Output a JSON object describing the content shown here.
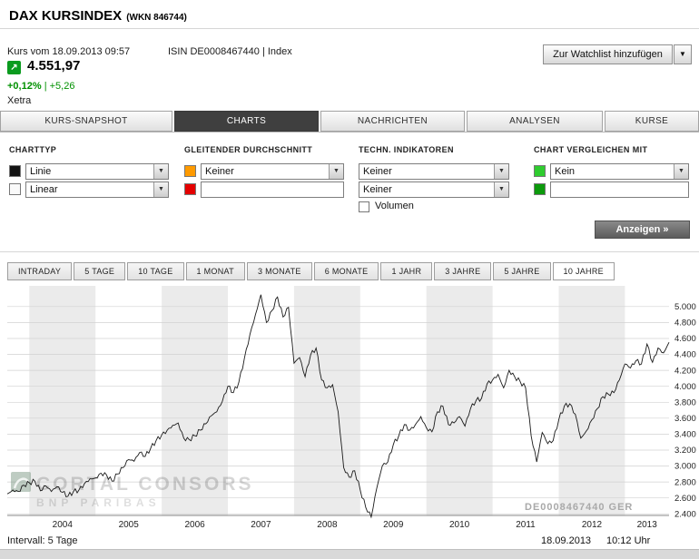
{
  "header": {
    "title": "DAX KURSINDEX",
    "wkn": "(WKN 846744)",
    "quote_timestamp": "Kurs vom 18.09.2013 09:57",
    "isin": "ISIN DE0008467440 | Index",
    "price": "4.551,97",
    "change_percent": "+0,12%",
    "change_absolute": "| +5,26",
    "exchange": "Xetra",
    "watchlist_button": "Zur Watchlist hinzufügen",
    "trend_icon": "up-right-arrow",
    "trend_arrow_glyph": "↗",
    "positive_color": "#009100",
    "trend_icon_color": "#0b9b1f"
  },
  "tabs": [
    {
      "label": "KURS-SNAPSHOT",
      "active": false
    },
    {
      "label": "CHARTS",
      "active": true
    },
    {
      "label": "NACHRICHTEN",
      "active": false
    },
    {
      "label": "ANALYSEN",
      "active": false
    },
    {
      "label": "KURSE",
      "active": false
    }
  ],
  "options_panel": {
    "columns": [
      {
        "header": "CHARTTYP",
        "rows": [
          {
            "swatch": "#141414",
            "value": "Linie"
          },
          {
            "swatch": "#fafafa",
            "value": "Linear"
          }
        ]
      },
      {
        "header": "GLEITENDER DURCHSCHNITT",
        "rows": [
          {
            "swatch": "#ff9a00",
            "value": "Keiner"
          },
          {
            "swatch": "#e40000",
            "value": ""
          }
        ]
      },
      {
        "header": "TECHN. INDIKATOREN",
        "rows": [
          {
            "swatch": null,
            "value": "Keiner"
          },
          {
            "swatch": null,
            "value": "Keiner"
          }
        ],
        "checkbox_label": "Volumen",
        "checkbox_checked": false
      },
      {
        "header": "CHART VERGLEICHEN MIT",
        "rows": [
          {
            "swatch": "#2fcc2f",
            "value": "Kein"
          },
          {
            "swatch": "#0c9a0c",
            "value": ""
          }
        ]
      }
    ],
    "submit_button": "Anzeigen »"
  },
  "range_tabs": [
    {
      "label": "INTRADAY",
      "active": false
    },
    {
      "label": "5 TAGE",
      "active": false
    },
    {
      "label": "10 TAGE",
      "active": false
    },
    {
      "label": "1 MONAT",
      "active": false
    },
    {
      "label": "3 MONATE",
      "active": false
    },
    {
      "label": "6 MONATE",
      "active": false
    },
    {
      "label": "1 JAHR",
      "active": false
    },
    {
      "label": "3 JAHRE",
      "active": false
    },
    {
      "label": "5 JAHRE",
      "active": false
    },
    {
      "label": "10 JAHRE",
      "active": true
    }
  ],
  "chart_data": {
    "type": "line",
    "title": "DAX Kursindex 10 Jahre",
    "x_range": [
      "2003-09",
      "2013-09"
    ],
    "interval": "5 Tage",
    "x_labels": [
      "2004",
      "2005",
      "2006",
      "2007",
      "2008",
      "2009",
      "2010",
      "2011",
      "2012",
      "2013"
    ],
    "months_before_first_year": 4,
    "shaded_years": [
      2004,
      2006,
      2008,
      2010,
      2012
    ],
    "first_year": 2004,
    "y_ticks": [
      2400,
      2600,
      2800,
      3000,
      3200,
      3400,
      3600,
      3800,
      4000,
      4200,
      4400,
      4600,
      4800,
      5000
    ],
    "y_tick_labels": [
      "2.400",
      "2.600",
      "2.800",
      "3.000",
      "3.200",
      "3.400",
      "3.600",
      "3.800",
      "4.000",
      "4.200",
      "4.400",
      "4.600",
      "4.800",
      "5.000"
    ],
    "ylim": [
      2380,
      5260
    ],
    "monthly_values": [
      2650,
      2700,
      2680,
      2760,
      2790,
      2810,
      2690,
      2750,
      2680,
      2740,
      2670,
      2620,
      2680,
      2700,
      2780,
      2840,
      2850,
      2910,
      2890,
      2810,
      2900,
      2980,
      3080,
      3060,
      3170,
      3120,
      3220,
      3320,
      3390,
      3450,
      3510,
      3540,
      3350,
      3330,
      3380,
      3450,
      3530,
      3630,
      3680,
      3810,
      4000,
      3920,
      4050,
      4350,
      4650,
      4900,
      5150,
      4800,
      4950,
      5120,
      4870,
      4990,
      4290,
      4360,
      4120,
      4390,
      4480,
      4080,
      3980,
      4020,
      3680,
      2980,
      2860,
      2940,
      2700,
      2480,
      2360,
      2720,
      3000,
      3050,
      3270,
      3380,
      3520,
      3450,
      3520,
      3620,
      3480,
      3430,
      3680,
      3750,
      3520,
      3540,
      3620,
      3500,
      3720,
      3820,
      3850,
      4030,
      4080,
      4150,
      3980,
      4200,
      4120,
      4060,
      3980,
      3380,
      3050,
      3420,
      3280,
      3320,
      3580,
      3750,
      3780,
      3650,
      3350,
      3440,
      3580,
      3720,
      3870,
      3900,
      3920,
      4080,
      4280,
      4230,
      4320,
      4280,
      4530,
      4300,
      4480,
      4420,
      4552
    ],
    "line_color": "#1a1a1a",
    "band_color": "#ebebeb",
    "grid_color": "#d2d2d2",
    "watermark_line1": "CORTAL CONSORS",
    "watermark_line2": "BNP PARIBAS",
    "instrument_label": "DE0008467440 GER"
  },
  "footer": {
    "interval": "Intervall: 5 Tage",
    "date": "18.09.2013",
    "time": "10:12 Uhr"
  }
}
